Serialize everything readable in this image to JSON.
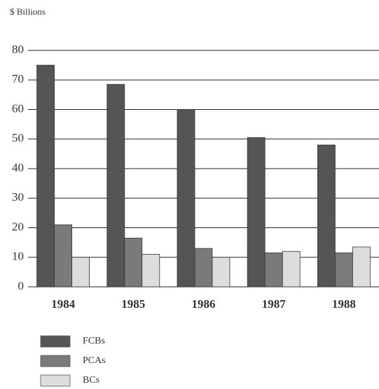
{
  "chart_data": {
    "type": "bar",
    "y_label": "$ Billions",
    "categories": [
      "1984",
      "1985",
      "1986",
      "1987",
      "1988"
    ],
    "series": [
      {
        "name": "FCBs",
        "color": "#555555",
        "values": [
          75,
          68.5,
          60,
          50.5,
          48
        ]
      },
      {
        "name": "PCAs",
        "color": "#7a7a7a",
        "values": [
          21,
          16.5,
          13,
          11.5,
          11.5
        ]
      },
      {
        "name": "BCs",
        "color": "#dddddd",
        "values": [
          10,
          11,
          10,
          12,
          13.5
        ]
      }
    ],
    "ylim": [
      0,
      80
    ],
    "yticks": [
      0,
      10,
      20,
      30,
      40,
      50,
      60,
      70,
      80
    ],
    "grid": true
  }
}
